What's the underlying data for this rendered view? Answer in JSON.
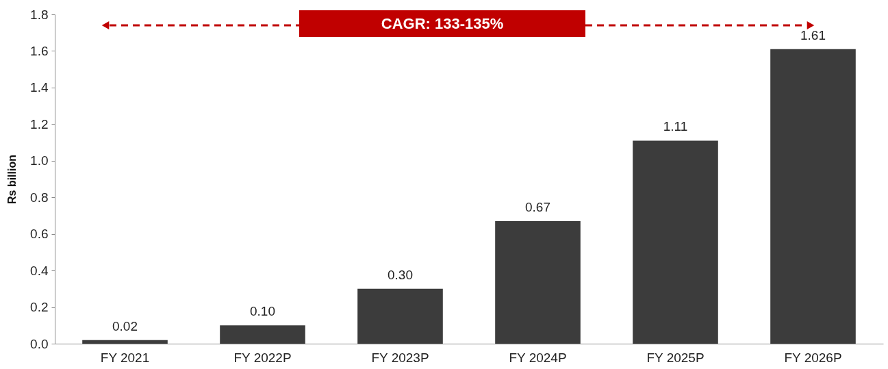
{
  "chart_data": {
    "type": "bar",
    "ylabel": "Rs billion",
    "categories": [
      "FY 2021",
      "FY 2022P",
      "FY 2023P",
      "FY 2024P",
      "FY 2025P",
      "FY 2026P"
    ],
    "values": [
      0.02,
      0.1,
      0.3,
      0.67,
      1.11,
      1.61
    ],
    "color": "#3c3c3c",
    "value_labels": [
      "0.02",
      "0.10",
      "0.30",
      "0.67",
      "1.11",
      "1.61"
    ],
    "ylim": [
      0,
      1.8
    ],
    "yticks": [
      {
        "value": 0,
        "label": "0.0"
      },
      0.2,
      0.4,
      0.6,
      0.8,
      {
        "value": 1,
        "label": "1.0"
      },
      1.2,
      1.4,
      1.6,
      1.8
    ],
    "grid": false,
    "annotations": [
      "CAGR: 133-135%"
    ]
  }
}
